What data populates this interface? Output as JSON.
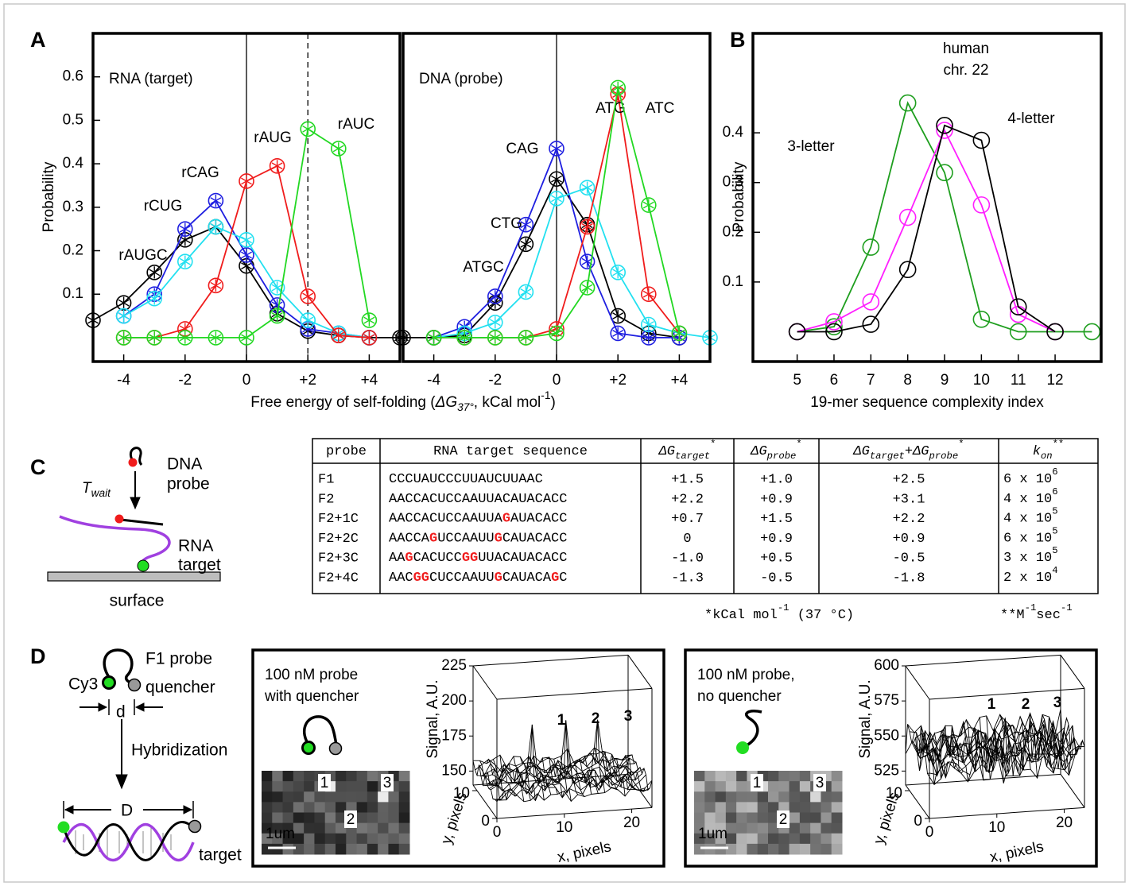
{
  "panels": [
    "A",
    "B",
    "C",
    "D"
  ],
  "chart_data": [
    {
      "type": "line",
      "subtitle": "RNA (target)",
      "ylabel": "Probability",
      "xlabel": [
        "Free energy of self-folding (",
        {
          "text": "ΔG",
          "style": "italic"
        },
        {
          "text": "37°",
          "pos": "sub",
          "style": "italic"
        },
        ", kCal mol",
        {
          "text": "-1",
          "pos": "sup"
        },
        ")"
      ],
      "x": [
        -5,
        -4,
        -3,
        -2,
        -1,
        0,
        1,
        2,
        3,
        4,
        5
      ],
      "xlim": [
        -5,
        5
      ],
      "ylim": [
        -0.055,
        0.7
      ],
      "xticks": [
        -4,
        -2,
        0,
        {
          "value": 2,
          "label": "+2"
        },
        {
          "value": 4,
          "label": "+4"
        }
      ],
      "yticks": [
        0.1,
        0.2,
        0.3,
        0.4,
        0.5,
        0.6
      ],
      "vlines": [
        0
      ],
      "dashed_vlines": [
        2
      ],
      "marker": "asterisk-circle",
      "series": [
        {
          "name": "rAUGC",
          "color": "#000000",
          "values": [
            0.04,
            0.08,
            0.15,
            0.225,
            0.255,
            0.165,
            0.055,
            0.015,
            0.005,
            0,
            0
          ]
        },
        {
          "name": "rCAG",
          "color": "#1f1fe0",
          "values": [
            null,
            0.05,
            0.1,
            0.25,
            0.315,
            0.19,
            0.075,
            0.02,
            0.01,
            0,
            null
          ]
        },
        {
          "name": "rCUG",
          "color": "#22e0f0",
          "values": [
            null,
            0.05,
            0.09,
            0.175,
            0.255,
            0.225,
            0.115,
            0.04,
            0.01,
            0,
            null
          ]
        },
        {
          "name": "rAUG",
          "color": "#f01c1c",
          "values": [
            null,
            0,
            0,
            0.02,
            0.12,
            0.36,
            0.395,
            0.095,
            0.005,
            0,
            null
          ]
        },
        {
          "name": "rAUC",
          "color": "#22d822",
          "values": [
            null,
            0,
            0,
            0,
            0,
            0,
            0.05,
            0.48,
            0.435,
            0.04,
            null
          ]
        }
      ]
    },
    {
      "type": "line",
      "subtitle": "DNA (probe)",
      "x": [
        -5,
        -4,
        -3,
        -2,
        -1,
        0,
        1,
        2,
        3,
        4,
        5
      ],
      "xlim": [
        -5,
        5
      ],
      "ylim": [
        -0.055,
        0.7
      ],
      "xticks": [
        -4,
        -2,
        0,
        {
          "value": 2,
          "label": "+2"
        },
        {
          "value": 4,
          "label": "+4"
        }
      ],
      "vlines": [
        0
      ],
      "marker": "asterisk-circle",
      "series": [
        {
          "name": "ATGC",
          "color": "#000000",
          "values": [
            0,
            0,
            0.005,
            0.08,
            0.215,
            0.365,
            0.26,
            0.05,
            0.01,
            0,
            null
          ]
        },
        {
          "name": "CAG",
          "color": "#1f1fe0",
          "values": [
            null,
            0,
            0.025,
            0.095,
            0.26,
            0.435,
            0.175,
            0.01,
            0,
            0,
            null
          ]
        },
        {
          "name": "CTG",
          "color": "#22e0f0",
          "values": [
            null,
            0,
            0.01,
            0.035,
            0.105,
            0.32,
            0.345,
            0.15,
            0.03,
            0.01,
            0
          ]
        },
        {
          "name": "ATG",
          "color": "#f01c1c",
          "values": [
            null,
            0,
            0,
            0,
            0,
            0.02,
            0.255,
            0.56,
            0.1,
            0.01,
            null
          ]
        },
        {
          "name": "ATC",
          "color": "#22d822",
          "values": [
            null,
            0,
            0,
            0,
            0,
            0.01,
            0.115,
            0.575,
            0.305,
            0.01,
            null
          ]
        }
      ]
    },
    {
      "type": "line",
      "ylabel": "Probability",
      "xlabel": "19-mer sequence complexity index",
      "x": [
        5,
        6,
        7,
        8,
        9,
        10,
        11,
        12,
        13
      ],
      "xlim": [
        3.8,
        13.25
      ],
      "ylim": [
        -0.06,
        0.6
      ],
      "xticks": [
        5,
        6,
        7,
        8,
        9,
        10,
        11,
        12
      ],
      "yticks": [
        0.1,
        0.2,
        0.3,
        0.4
      ],
      "marker": "circle",
      "series": [
        {
          "name": "3-letter",
          "color": "#1e9e1e",
          "values": [
            0,
            0.01,
            0.17,
            0.46,
            0.32,
            0.025,
            0,
            0,
            0
          ]
        },
        {
          "name": [
            "human",
            "chr. 22"
          ],
          "color": "#ff1fff",
          "values": [
            0,
            0.02,
            0.06,
            0.23,
            0.405,
            0.255,
            0.035,
            0,
            null
          ]
        },
        {
          "name": "4-letter",
          "color": "#000000",
          "values": [
            0,
            0,
            0.015,
            0.125,
            0.415,
            0.385,
            0.05,
            0,
            null
          ]
        }
      ]
    }
  ],
  "diagram_c": {
    "dna_probe": [
      "DNA",
      "probe"
    ],
    "t_wait": [
      {
        "text": "T",
        "style": "italic"
      },
      {
        "text": "wait",
        "pos": "sub",
        "style": "italic"
      }
    ],
    "rna_target": [
      "RNA",
      "target"
    ],
    "surface": "surface"
  },
  "table": {
    "header": [
      [
        "probe"
      ],
      [
        "RNA target sequence"
      ],
      [
        {
          "text": "ΔG",
          "style": "italic"
        },
        {
          "text": "target",
          "pos": "sub",
          "style": "italic"
        },
        {
          "text": "*",
          "pos": "sup"
        }
      ],
      [
        {
          "text": "ΔG",
          "style": "italic"
        },
        {
          "text": "probe",
          "pos": "sub",
          "style": "italic"
        },
        {
          "text": "*",
          "pos": "sup"
        }
      ],
      [
        {
          "text": "ΔG",
          "style": "italic"
        },
        {
          "text": "target",
          "pos": "sub",
          "style": "italic"
        },
        "+",
        {
          "text": "ΔG",
          "style": "italic"
        },
        {
          "text": "probe",
          "pos": "sub",
          "style": "italic"
        },
        {
          "text": "*",
          "pos": "sup"
        }
      ],
      [
        {
          "text": "k",
          "style": "italic"
        },
        {
          "text": "on",
          "pos": "sub",
          "style": "italic"
        },
        {
          "text": "**",
          "pos": "sup"
        }
      ]
    ],
    "rows": [
      [
        "F1",
        [
          "CCCUAUCCCUUAUCUUAAC"
        ],
        "+1.5",
        "+1.0",
        "+2.5",
        [
          "6 x 10",
          {
            "text": "6",
            "pos": "sup"
          }
        ]
      ],
      [
        "F2",
        [
          "AACCACUCCAAUUACAUACACC"
        ],
        "+2.2",
        "+0.9",
        "+3.1",
        [
          "4 x 10",
          {
            "text": "6",
            "pos": "sup"
          }
        ]
      ],
      [
        "F2+1C",
        [
          "AACCACUCCAAUUA",
          {
            "text": "G",
            "color": "#f01c1c",
            "weight": "bold"
          },
          "AUACACC"
        ],
        "+0.7",
        "+1.5",
        "+2.2",
        [
          "4 x 10",
          {
            "text": "5",
            "pos": "sup"
          }
        ]
      ],
      [
        "F2+2C",
        [
          "AACCA",
          {
            "text": "G",
            "color": "#f01c1c",
            "weight": "bold"
          },
          "UCCAAUU",
          {
            "text": "G",
            "color": "#f01c1c",
            "weight": "bold"
          },
          "CAUACACC"
        ],
        "0",
        "+0.9",
        "+0.9",
        [
          "6 x 10",
          {
            "text": "5",
            "pos": "sup"
          }
        ]
      ],
      [
        "F2+3C",
        [
          "AA",
          {
            "text": "G",
            "color": "#f01c1c",
            "weight": "bold"
          },
          "CACUCC",
          {
            "text": "GG",
            "color": "#f01c1c",
            "weight": "bold"
          },
          "UUACAUACACC"
        ],
        "-1.0",
        "+0.5",
        "-0.5",
        [
          "3 x 10",
          {
            "text": "5",
            "pos": "sup"
          }
        ]
      ],
      [
        "F2+4C",
        [
          "AAC",
          {
            "text": "GG",
            "color": "#f01c1c",
            "weight": "bold"
          },
          "CUCCAAUU",
          {
            "text": "G",
            "color": "#f01c1c",
            "weight": "bold"
          },
          "CAUACA",
          {
            "text": "G",
            "color": "#f01c1c",
            "weight": "bold"
          },
          "C"
        ],
        "-1.3",
        "-0.5",
        "-1.8",
        [
          "2 x 10",
          {
            "text": "4",
            "pos": "sup"
          }
        ]
      ]
    ],
    "footnotes": [
      [
        "*kCal mol",
        {
          "text": "-1",
          "pos": "sup"
        },
        " (37 °C)"
      ],
      [
        "**M",
        {
          "text": "-1",
          "pos": "sup"
        },
        "sec",
        {
          "text": "-1",
          "pos": "sup"
        }
      ]
    ]
  },
  "diagram_d": {
    "f1_probe": "F1 probe",
    "cy3": "Cy3",
    "quencher": "quencher",
    "d_small": "d",
    "hybridization": "Hybridization",
    "d_large": "D",
    "target": "target"
  },
  "insets": [
    {
      "title": [
        "100 nM probe",
        "with quencher"
      ],
      "spots": [
        "1",
        "2",
        "3"
      ],
      "scale_bar": "1um",
      "zlabel": "Signal, A.U.",
      "ylabel": "y, pixels",
      "xlabel": "x, pixels",
      "zlim": [
        140,
        225
      ],
      "zticks": [
        150,
        175,
        200,
        225
      ],
      "ylim": [
        0,
        12
      ],
      "yticks": [
        0,
        10
      ],
      "xlim": [
        0,
        23
      ],
      "xticks": [
        0,
        10,
        20
      ],
      "peaks": [
        "1",
        "2",
        "3"
      ],
      "quencher": true
    },
    {
      "title": [
        "100 nM probe,",
        "no quencher"
      ],
      "spots": [
        "1",
        "2",
        "3"
      ],
      "scale_bar": "1um",
      "zlabel": "Signal, A.U.",
      "ylabel": "y, pixels",
      "xlabel": "x, pixels",
      "zlim": [
        515,
        600
      ],
      "zticks": [
        525,
        550,
        575,
        600
      ],
      "ylim": [
        0,
        12
      ],
      "yticks": [
        0,
        10
      ],
      "xlim": [
        0,
        23
      ],
      "xticks": [
        0,
        10,
        20
      ],
      "peaks": [
        "1",
        "2",
        "3"
      ],
      "quencher": false
    }
  ]
}
